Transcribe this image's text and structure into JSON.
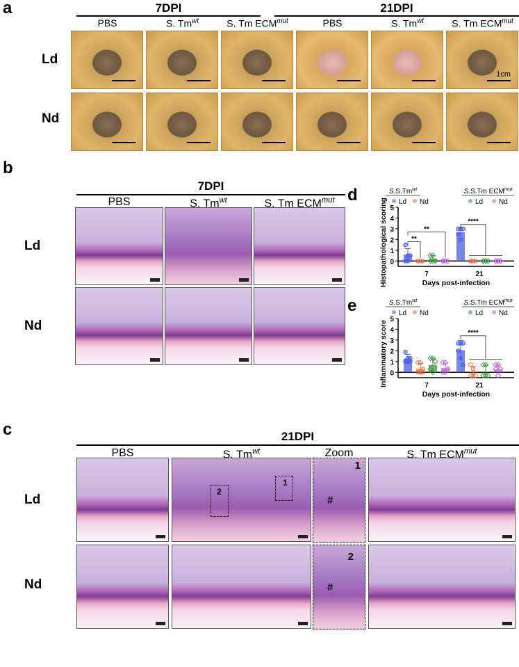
{
  "panel_a": {
    "label": "a",
    "groups": [
      "7DPI",
      "21DPI"
    ],
    "columns": [
      {
        "name": "PBS",
        "sup": ""
      },
      {
        "name": "S. Tm",
        "sup": "wt"
      },
      {
        "name": "S. Tm ECM",
        "sup": "mut"
      },
      {
        "name": "PBS",
        "sup": ""
      },
      {
        "name": "S. Tm",
        "sup": "wt"
      },
      {
        "name": "S. Tm ECM",
        "sup": "mut"
      }
    ],
    "rows": [
      "Ld",
      "Nd"
    ],
    "scale_label": "1cm"
  },
  "panel_b": {
    "label": "b",
    "group": "7DPI",
    "columns": [
      {
        "name": "PBS",
        "sup": ""
      },
      {
        "name": "S. Tm",
        "sup": "wt"
      },
      {
        "name": "S. Tm ECM",
        "sup": "mut"
      }
    ],
    "rows": [
      "Ld",
      "Nd"
    ]
  },
  "panel_c": {
    "label": "c",
    "group": "21DPI",
    "columns": [
      {
        "name": "PBS",
        "sup": ""
      },
      {
        "name": "S. Tm",
        "sup": "wt"
      },
      {
        "name": "Zoom",
        "sup": ""
      },
      {
        "name": "S. Tm ECM",
        "sup": "mut"
      }
    ],
    "rows": [
      "Ld",
      "Nd"
    ],
    "box_labels": [
      "1",
      "2"
    ],
    "hash": "#"
  },
  "chart_data": [
    {
      "panel": "d",
      "type": "bar",
      "xlabel": "Days post-infection",
      "ylabel": "Histopathological scoring",
      "ylim": [
        -0.5,
        5
      ],
      "yticks": [
        "0",
        "1",
        "2",
        "3",
        "4",
        "5"
      ],
      "categories": [
        "7",
        "21"
      ],
      "legend_groups": [
        {
          "name": "S.Tm",
          "sup": "wt"
        },
        {
          "name": "S.Tm ECM",
          "sup": "mut"
        }
      ],
      "series": [
        {
          "name": "Ld",
          "group": 0,
          "color": "#4a5ee8",
          "values": [
            0.6,
            2.7
          ],
          "sd": [
            0.55,
            0.45
          ],
          "points": [
            [
              0,
              0.5,
              0.5,
              1.5,
              0
            ],
            [
              3,
              3,
              3,
              2.5,
              2
            ]
          ]
        },
        {
          "name": "Nd",
          "group": 0,
          "color": "#f26b3a",
          "values": [
            0,
            0
          ],
          "sd": [
            0,
            0
          ],
          "points": [
            [
              0,
              0,
              0,
              0,
              0
            ],
            [
              0,
              0,
              0,
              0,
              0
            ]
          ]
        },
        {
          "name": "Ld",
          "group": 1,
          "color": "#3a9a3a",
          "values": [
            0.2,
            0
          ],
          "sd": [
            0.3,
            0
          ],
          "points": [
            [
              0,
              0,
              0,
              0.5,
              0.5
            ],
            [
              0,
              0,
              0,
              0,
              0
            ]
          ]
        },
        {
          "name": "Nd",
          "group": 1,
          "color": "#c060e0",
          "values": [
            0,
            0
          ],
          "sd": [
            0,
            0
          ],
          "points": [
            [
              0,
              0,
              0,
              0,
              0
            ],
            [
              0,
              0,
              0,
              0,
              0
            ]
          ]
        }
      ],
      "significance": [
        {
          "label": "**",
          "from": [
            0,
            0
          ],
          "to": [
            0,
            1
          ]
        },
        {
          "label": "**",
          "from": [
            0,
            0
          ],
          "to": [
            0,
            3
          ]
        },
        {
          "label": "****",
          "from": [
            1,
            0
          ],
          "to": [
            1,
            1,
            3
          ]
        }
      ]
    },
    {
      "panel": "e",
      "type": "bar",
      "xlabel": "Days post-infection",
      "ylabel": "Inflammatory score",
      "ylim": [
        -0.5,
        5
      ],
      "yticks": [
        "0",
        "1",
        "2",
        "3",
        "4",
        "5"
      ],
      "categories": [
        "7",
        "21"
      ],
      "legend_groups": [
        {
          "name": "S.Tm",
          "sup": "wt"
        },
        {
          "name": "S.Tm ECM",
          "sup": "mut"
        }
      ],
      "series": [
        {
          "name": "Ld",
          "group": 0,
          "color": "#4a5ee8",
          "values": [
            1.27,
            2.07
          ],
          "sd": [
            0.4,
            0.9
          ],
          "points": [
            [
              1.9,
              1.3,
              1.3,
              1,
              1,
              1
            ],
            [
              2.7,
              2.7,
              2.7,
              2,
              1.3,
              0.7
            ]
          ]
        },
        {
          "name": "Nd",
          "group": 0,
          "color": "#f26b3a",
          "values": [
            0.33,
            0.07
          ],
          "sd": [
            0.5,
            0.5
          ],
          "points": [
            [
              0.9,
              0.9,
              0.3,
              0,
              0,
              0
            ],
            [
              0.7,
              0.3,
              -0.3,
              -0.3,
              -0.3
            ]
          ]
        },
        {
          "name": "Ld",
          "group": 1,
          "color": "#3a9a3a",
          "values": [
            0.67,
            0.07
          ],
          "sd": [
            0.6,
            0.6
          ],
          "points": [
            [
              1.3,
              1.3,
              1,
              0.3,
              0
            ],
            [
              0.7,
              0.7,
              -0.3,
              -0.3,
              -0.3
            ]
          ]
        },
        {
          "name": "Nd",
          "group": 1,
          "color": "#c060e0",
          "values": [
            0.4,
            0.27
          ],
          "sd": [
            0.45,
            0.4
          ],
          "points": [
            [
              0.9,
              0.9,
              0.3,
              0,
              0
            ],
            [
              0.7,
              0.7,
              0.3,
              0.3,
              -0.3
            ]
          ]
        }
      ],
      "significance": [
        {
          "label": "****",
          "from": [
            1,
            0
          ],
          "to": [
            1,
            1,
            3
          ]
        }
      ]
    }
  ]
}
